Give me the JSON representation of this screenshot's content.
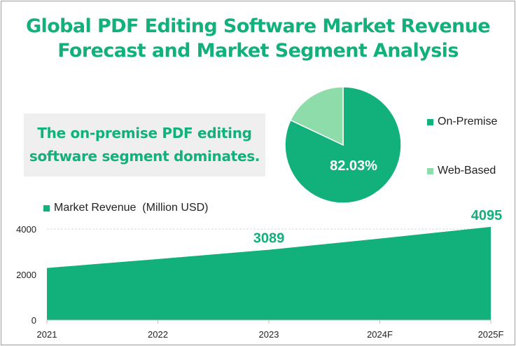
{
  "title_line1": "Global PDF Editing Software Market Revenue",
  "title_line2": "Forecast and Market Segment Analysis",
  "callout_line1": "The on-premise PDF editing",
  "callout_line2": "software segment dominates.",
  "colors": {
    "primary": "#12b07a",
    "secondary": "#8fdcab",
    "callout_bg": "#efefef"
  },
  "chart_data": [
    {
      "type": "pie",
      "labels": [
        "On-Premise",
        "Web-Based"
      ],
      "values": [
        82.03,
        17.97
      ],
      "colors": [
        "#12b07a",
        "#8fdcab"
      ],
      "data_label": "82.03%",
      "legend_position": "right"
    },
    {
      "type": "area",
      "categories": [
        "2021",
        "2022",
        "2023",
        "2024F",
        "2025F"
      ],
      "series": [
        {
          "name": "Market Revenue  (Million USD)",
          "values": [
            2290,
            2680,
            3089,
            3580,
            4095
          ],
          "color": "#12b07a"
        }
      ],
      "data_labels": [
        {
          "category": "2023",
          "text": "3089"
        },
        {
          "category": "2025F",
          "text": "4095"
        }
      ],
      "ylim": [
        0,
        4000
      ],
      "yticks": [
        "0",
        "2000",
        "4000"
      ],
      "grid": true,
      "legend_position": "top-left"
    }
  ]
}
